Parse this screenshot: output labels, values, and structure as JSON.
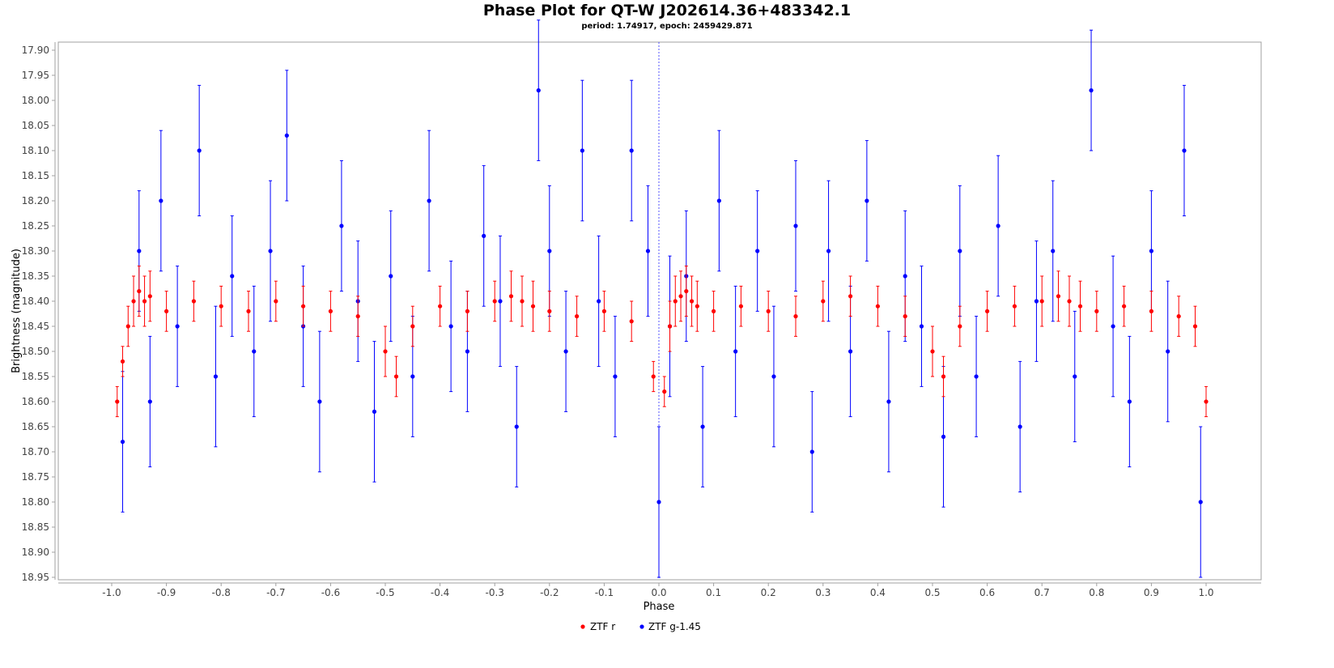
{
  "title": "Phase Plot for QT-W J202614.36+483342.1",
  "subtitle": "period: 1.74917, epoch: 2459429.871",
  "chart_data": {
    "type": "scatter",
    "title": "Phase Plot for QT-W J202614.36+483342.1",
    "subtitle": "period: 1.74917, epoch: 2459429.871",
    "xlabel": "Phase",
    "ylabel": "Brightness (magnitude)",
    "xlim": [
      -1.1,
      1.1
    ],
    "ylim": [
      17.88,
      18.96
    ],
    "y_inverted": true,
    "x_ticks": [
      -1.0,
      -0.9,
      -0.8,
      -0.7,
      -0.6,
      -0.5,
      -0.4,
      -0.3,
      -0.2,
      -0.1,
      0.0,
      0.1,
      0.2,
      0.3,
      0.4,
      0.5,
      0.6,
      0.7,
      0.8,
      0.9,
      1.0
    ],
    "x_tick_labels": [
      "-1.0",
      "-0.9",
      "-0.8",
      "-0.7",
      "-0.6",
      "-0.5",
      "-0.4",
      "-0.3",
      "-0.2",
      "-0.1",
      "0.0",
      "0.1",
      "0.2",
      "0.3",
      "0.4",
      "0.5",
      "0.6",
      "0.7",
      "0.8",
      "0.9",
      "1.0"
    ],
    "y_ticks": [
      17.9,
      17.95,
      18.0,
      18.05,
      18.1,
      18.15,
      18.2,
      18.25,
      18.3,
      18.35,
      18.4,
      18.45,
      18.5,
      18.55,
      18.6,
      18.65,
      18.7,
      18.75,
      18.8,
      18.85,
      18.9,
      18.95
    ],
    "y_tick_labels": [
      "17.90",
      "17.95",
      "18.00",
      "18.05",
      "18.10",
      "18.15",
      "18.20",
      "18.25",
      "18.30",
      "18.35",
      "18.40",
      "18.45",
      "18.50",
      "18.55",
      "18.60",
      "18.65",
      "18.70",
      "18.75",
      "18.80",
      "18.85",
      "18.90",
      "18.95"
    ],
    "grid": false,
    "reference_line_x": 0.0,
    "legend_position": "bottom-center",
    "series": [
      {
        "name": "ZTF r",
        "color": "#ff0000",
        "x": [
          -0.99,
          -0.98,
          -0.97,
          -0.96,
          -0.95,
          -0.94,
          -0.93,
          -0.9,
          -0.85,
          -0.8,
          -0.75,
          -0.7,
          -0.65,
          -0.6,
          -0.55,
          -0.5,
          -0.48,
          -0.45,
          -0.4,
          -0.35,
          -0.3,
          -0.27,
          -0.25,
          -0.23,
          -0.2,
          -0.15,
          -0.1,
          -0.05,
          -0.01,
          0.01,
          0.02,
          0.03,
          0.04,
          0.05,
          0.06,
          0.07,
          0.1,
          0.15,
          0.2,
          0.25,
          0.3,
          0.35,
          0.4,
          0.45,
          0.5,
          0.52,
          0.55,
          0.6,
          0.65,
          0.7,
          0.73,
          0.75,
          0.77,
          0.8,
          0.85,
          0.9,
          0.95,
          0.98,
          1.0
        ],
        "y": [
          18.6,
          18.52,
          18.45,
          18.4,
          18.38,
          18.4,
          18.39,
          18.42,
          18.4,
          18.41,
          18.42,
          18.4,
          18.41,
          18.42,
          18.43,
          18.5,
          18.55,
          18.45,
          18.41,
          18.42,
          18.4,
          18.39,
          18.4,
          18.41,
          18.42,
          18.43,
          18.42,
          18.44,
          18.55,
          18.58,
          18.45,
          18.4,
          18.39,
          18.38,
          18.4,
          18.41,
          18.42,
          18.41,
          18.42,
          18.43,
          18.4,
          18.39,
          18.41,
          18.43,
          18.5,
          18.55,
          18.45,
          18.42,
          18.41,
          18.4,
          18.39,
          18.4,
          18.41,
          18.42,
          18.41,
          18.42,
          18.43,
          18.45,
          18.6
        ],
        "err": [
          0.03,
          0.03,
          0.04,
          0.05,
          0.05,
          0.05,
          0.05,
          0.04,
          0.04,
          0.04,
          0.04,
          0.04,
          0.04,
          0.04,
          0.04,
          0.05,
          0.04,
          0.04,
          0.04,
          0.04,
          0.04,
          0.05,
          0.05,
          0.05,
          0.04,
          0.04,
          0.04,
          0.04,
          0.03,
          0.03,
          0.05,
          0.05,
          0.05,
          0.05,
          0.05,
          0.05,
          0.04,
          0.04,
          0.04,
          0.04,
          0.04,
          0.04,
          0.04,
          0.04,
          0.05,
          0.04,
          0.04,
          0.04,
          0.04,
          0.05,
          0.05,
          0.05,
          0.05,
          0.04,
          0.04,
          0.04,
          0.04,
          0.04,
          0.03
        ]
      },
      {
        "name": "ZTF g-1.45",
        "color": "#0000ff",
        "x": [
          -0.98,
          -0.95,
          -0.93,
          -0.91,
          -0.88,
          -0.84,
          -0.81,
          -0.78,
          -0.74,
          -0.71,
          -0.68,
          -0.65,
          -0.62,
          -0.58,
          -0.55,
          -0.52,
          -0.49,
          -0.45,
          -0.42,
          -0.38,
          -0.35,
          -0.32,
          -0.29,
          -0.26,
          -0.22,
          -0.2,
          -0.17,
          -0.14,
          -0.11,
          -0.08,
          -0.05,
          -0.02,
          0.0,
          0.02,
          0.05,
          0.08,
          0.11,
          0.14,
          0.18,
          0.21,
          0.25,
          0.28,
          0.31,
          0.35,
          0.38,
          0.42,
          0.45,
          0.48,
          0.52,
          0.55,
          0.58,
          0.62,
          0.66,
          0.69,
          0.72,
          0.76,
          0.79,
          0.83,
          0.86,
          0.9,
          0.93,
          0.96,
          0.99
        ],
        "y": [
          18.68,
          18.3,
          18.6,
          18.2,
          18.45,
          18.1,
          18.55,
          18.35,
          18.5,
          18.3,
          18.07,
          18.45,
          18.6,
          18.25,
          18.4,
          18.62,
          18.35,
          18.55,
          18.2,
          18.45,
          18.5,
          18.27,
          18.4,
          18.65,
          17.98,
          18.3,
          18.5,
          18.1,
          18.4,
          18.55,
          18.1,
          18.3,
          18.8,
          18.45,
          18.35,
          18.65,
          18.2,
          18.5,
          18.3,
          18.55,
          18.25,
          18.7,
          18.3,
          18.5,
          18.2,
          18.6,
          18.35,
          18.45,
          18.67,
          18.3,
          18.55,
          18.25,
          18.65,
          18.4,
          18.3,
          18.55,
          17.98,
          18.45,
          18.6,
          18.3,
          18.5,
          18.1,
          18.8
        ],
        "err": [
          0.14,
          0.12,
          0.13,
          0.14,
          0.12,
          0.13,
          0.14,
          0.12,
          0.13,
          0.14,
          0.13,
          0.12,
          0.14,
          0.13,
          0.12,
          0.14,
          0.13,
          0.12,
          0.14,
          0.13,
          0.12,
          0.14,
          0.13,
          0.12,
          0.14,
          0.13,
          0.12,
          0.14,
          0.13,
          0.12,
          0.14,
          0.13,
          0.15,
          0.14,
          0.13,
          0.12,
          0.14,
          0.13,
          0.12,
          0.14,
          0.13,
          0.12,
          0.14,
          0.13,
          0.12,
          0.14,
          0.13,
          0.12,
          0.14,
          0.13,
          0.12,
          0.14,
          0.13,
          0.12,
          0.14,
          0.13,
          0.12,
          0.14,
          0.13,
          0.12,
          0.14,
          0.13,
          0.15
        ]
      }
    ]
  }
}
